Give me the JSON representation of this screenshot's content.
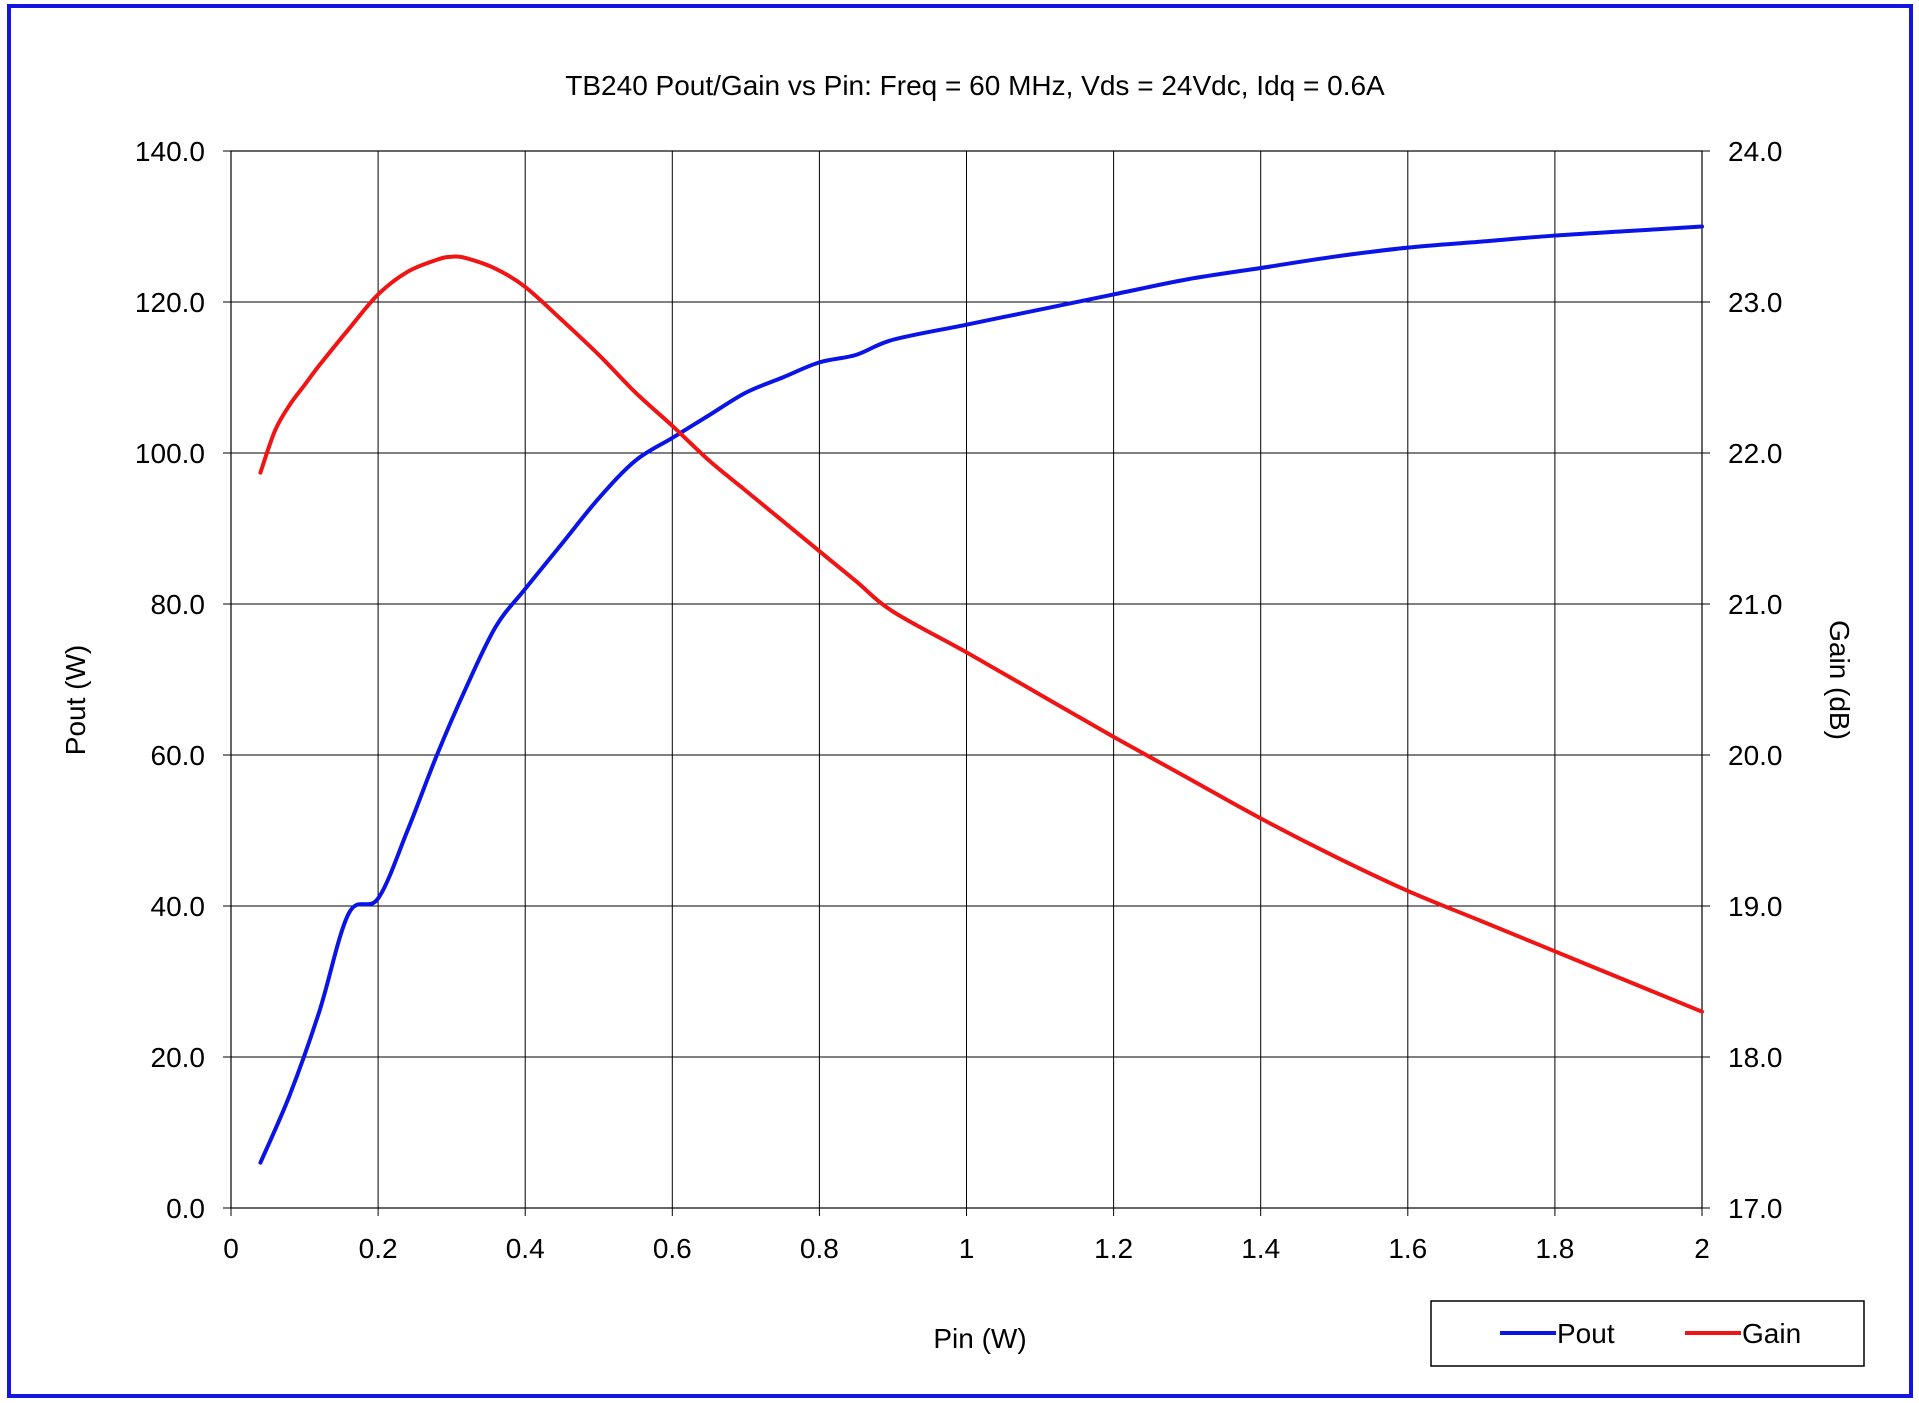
{
  "colors": {
    "frame": "#1515e0",
    "pout": "#0a14e6",
    "gain": "#f01414",
    "grid": "#000000"
  },
  "chart_data": {
    "type": "line",
    "title": "TB240 Pout/Gain vs Pin: Freq = 60 MHz, Vds = 24Vdc, Idq = 0.6A",
    "xlabel": "Pin (W)",
    "ylabel_left": "Pout (W)",
    "ylabel_right": "Gain (dB)",
    "xlim": [
      0,
      2
    ],
    "ylim_left": [
      0,
      140
    ],
    "ylim_right": [
      17,
      24
    ],
    "x_ticks": [
      "0",
      "0.2",
      "0.4",
      "0.6",
      "0.8",
      "1",
      "1.2",
      "1.4",
      "1.6",
      "1.8",
      "2"
    ],
    "y_ticks_left": [
      "0.0",
      "20.0",
      "40.0",
      "60.0",
      "80.0",
      "100.0",
      "120.0",
      "140.0"
    ],
    "y_ticks_right": [
      "17.0",
      "18.0",
      "19.0",
      "20.0",
      "21.0",
      "22.0",
      "23.0",
      "24.0"
    ],
    "grid": true,
    "legend_position": "bottom-right",
    "series": [
      {
        "name": "Pout",
        "axis": "left",
        "x": [
          0.04,
          0.08,
          0.12,
          0.16,
          0.2,
          0.24,
          0.28,
          0.32,
          0.36,
          0.4,
          0.45,
          0.5,
          0.55,
          0.6,
          0.65,
          0.7,
          0.75,
          0.8,
          0.85,
          0.9,
          1.0,
          1.1,
          1.2,
          1.3,
          1.4,
          1.5,
          1.6,
          1.7,
          1.8,
          1.9,
          2.0
        ],
        "values": [
          6,
          15,
          26,
          39,
          41,
          50,
          60,
          69,
          77,
          82,
          88,
          94,
          99,
          102,
          105,
          108,
          110,
          112,
          113,
          115,
          117,
          119,
          121,
          123,
          124.5,
          126,
          127.2,
          128,
          128.8,
          129.4,
          130
        ]
      },
      {
        "name": "Gain",
        "axis": "right",
        "x": [
          0.04,
          0.06,
          0.08,
          0.1,
          0.12,
          0.16,
          0.2,
          0.24,
          0.28,
          0.3,
          0.32,
          0.36,
          0.4,
          0.45,
          0.5,
          0.55,
          0.6,
          0.65,
          0.7,
          0.75,
          0.8,
          0.85,
          0.9,
          1.0,
          1.1,
          1.2,
          1.3,
          1.4,
          1.5,
          1.6,
          1.7,
          1.8,
          1.9,
          2.0
        ],
        "values": [
          21.87,
          22.15,
          22.32,
          22.45,
          22.58,
          22.82,
          23.05,
          23.2,
          23.28,
          23.3,
          23.29,
          23.22,
          23.1,
          22.88,
          22.65,
          22.4,
          22.18,
          21.95,
          21.75,
          21.55,
          21.35,
          21.15,
          20.95,
          20.68,
          20.4,
          20.12,
          19.85,
          19.58,
          19.33,
          19.1,
          18.9,
          18.7,
          18.5,
          18.3
        ]
      }
    ]
  }
}
